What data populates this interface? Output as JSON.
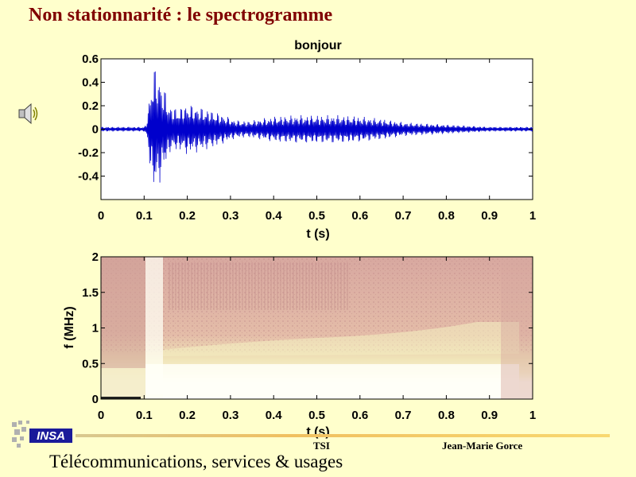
{
  "slide": {
    "title": "Non stationnarité : le spectrogramme",
    "speaker_icon": "speaker-icon"
  },
  "colors": {
    "title": "#800000",
    "background": "#FFFFCC",
    "waveform": "#0000CC",
    "spectrogram_high": "#D8A8A0",
    "spectrogram_low": "#FFFFF0"
  },
  "chart_data": [
    {
      "type": "line",
      "title": "bonjour",
      "xlabel": "t (s)",
      "ylabel": "",
      "xlim": [
        0,
        1
      ],
      "ylim": [
        -0.6,
        0.6
      ],
      "xticks": [
        "0",
        "0.1",
        "0.2",
        "0.3",
        "0.4",
        "0.5",
        "0.6",
        "0.7",
        "0.8",
        "0.9",
        "1"
      ],
      "yticks": [
        "0.6",
        "0.4",
        "0.2",
        "0",
        "-0.2",
        "-0.4"
      ],
      "series": [
        {
          "envelope": {
            "t": [
              0,
              0.1,
              0.105,
              0.11,
              0.12,
              0.13,
              0.14,
              0.15,
              0.16,
              0.18,
              0.2,
              0.22,
              0.25,
              0.28,
              0.31,
              0.34,
              0.37,
              0.4,
              0.45,
              0.5,
              0.55,
              0.6,
              0.65,
              0.7,
              0.75,
              0.8,
              0.85,
              0.9,
              0.95,
              1
            ],
            "amplitude": [
              0.02,
              0.02,
              0.05,
              0.2,
              0.55,
              0.52,
              0.42,
              0.32,
              0.2,
              0.18,
              0.22,
              0.2,
              0.17,
              0.13,
              0.08,
              0.07,
              0.09,
              0.11,
              0.12,
              0.12,
              0.12,
              0.11,
              0.09,
              0.06,
              0.05,
              0.04,
              0.03,
              0.02,
              0.02,
              0.02
            ]
          }
        }
      ]
    },
    {
      "type": "heatmap",
      "title": "",
      "xlabel": "t (s)",
      "ylabel": "f (MHz)",
      "xlim": [
        0,
        1
      ],
      "ylim": [
        0,
        2
      ],
      "xticks": [
        "0",
        "0.1",
        "0.2",
        "0.3",
        "0.4",
        "0.5",
        "0.6",
        "0.7",
        "0.8",
        "0.9",
        "1"
      ],
      "yticks": [
        "2",
        "1.5",
        "1",
        "0.5",
        "0"
      ]
    }
  ],
  "footer": {
    "logo_label": "INSA",
    "center": "TSI",
    "right": "Jean-Marie Gorce",
    "subtitle": "Télécommunications, services & usages"
  }
}
